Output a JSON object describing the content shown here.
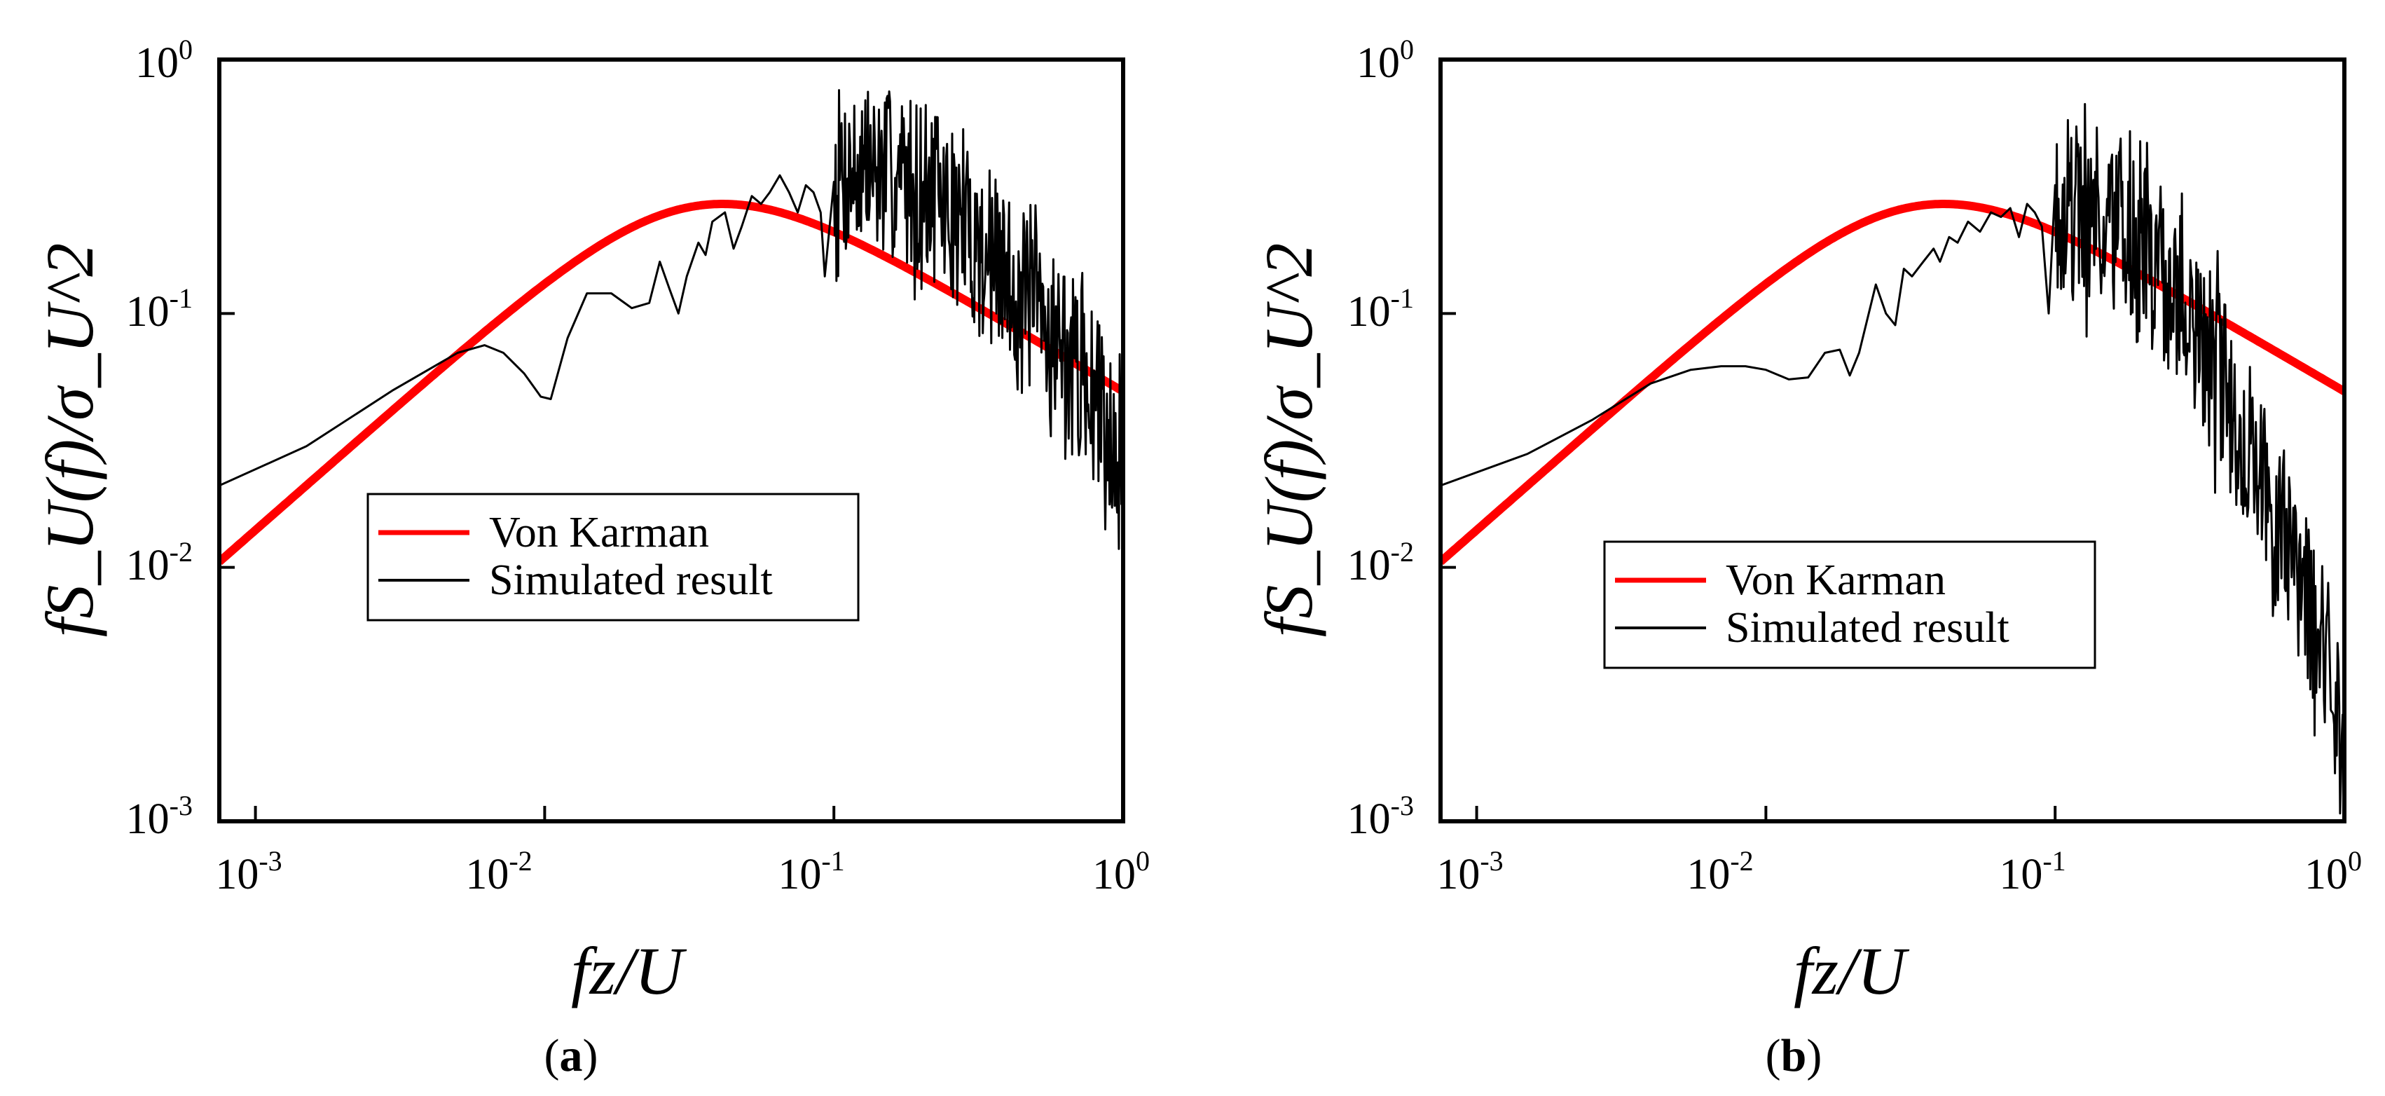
{
  "colors": {
    "von_karman": "#ff0000",
    "simulated": "#000000",
    "axes": "#000000",
    "background": "#ffffff"
  },
  "chart_data": [
    {
      "type": "line",
      "caption": "a",
      "xlabel": "fz/U",
      "ylabel": "fS_U(f)/σ_U^2",
      "xscale": "log",
      "yscale": "log",
      "xlim": [
        0.00075,
        1.0
      ],
      "ylim": [
        0.001,
        1.0
      ],
      "x_ticks": [
        {
          "base": "10",
          "exp": "-3"
        },
        {
          "base": "10",
          "exp": "-2"
        },
        {
          "base": "10",
          "exp": "-1"
        },
        {
          "base": "10",
          "exp": "0"
        }
      ],
      "y_ticks": [
        {
          "base": "10",
          "exp": "-3"
        },
        {
          "base": "10",
          "exp": "-2"
        },
        {
          "base": "10",
          "exp": "-1"
        },
        {
          "base": "10",
          "exp": "0"
        }
      ],
      "legend": {
        "placement": "center-left",
        "entries": [
          {
            "name": "Von Karman",
            "color": "#ff0000"
          },
          {
            "name": "Simulated result",
            "color": "#000000"
          }
        ]
      },
      "series": [
        {
          "name": "Von Karman",
          "model": "von-karman",
          "peak_x": 0.045,
          "peak_y": 0.27
        },
        {
          "name": "Simulated result",
          "smooth": {
            "x": [
              0.00075,
              0.0015,
              0.003,
              0.005,
              0.0062,
              0.0072,
              0.0085,
              0.0097,
              0.0105,
              0.012,
              0.014,
              0.017,
              0.02,
              0.023,
              0.025,
              0.027,
              0.029,
              0.031,
              0.034,
              0.036,
              0.038,
              0.042,
              0.045,
              0.048,
              0.052,
              0.056,
              0.06,
              0.065,
              0.07,
              0.075,
              0.08,
              0.085,
              0.09,
              0.093,
              0.1
            ],
            "y": [
              0.021,
              0.03,
              0.05,
              0.07,
              0.075,
              0.07,
              0.058,
              0.047,
              0.046,
              0.08,
              0.12,
              0.12,
              0.105,
              0.11,
              0.16,
              0.125,
              0.1,
              0.14,
              0.19,
              0.17,
              0.23,
              0.25,
              0.18,
              0.22,
              0.29,
              0.27,
              0.3,
              0.35,
              0.3,
              0.25,
              0.32,
              0.3,
              0.25,
              0.14,
              0.33
            ]
          },
          "noisy": {
            "x_start": 0.1,
            "x_end": 1.0,
            "anchors_x": [
              0.1,
              0.13,
              0.2,
              0.3,
              0.5,
              0.7,
              1.0
            ],
            "anchors_y": [
              0.36,
              0.37,
              0.33,
              0.2,
              0.1,
              0.06,
              0.03
            ],
            "jitter": 0.34,
            "seed": 7,
            "count": 340
          }
        }
      ]
    },
    {
      "type": "line",
      "caption": "b",
      "xlabel": "fz/U",
      "ylabel": "fS_U(f)/σ_U^2",
      "xscale": "log",
      "yscale": "log",
      "xlim": [
        0.00075,
        1.0
      ],
      "ylim": [
        0.001,
        1.0
      ],
      "x_ticks": [
        {
          "base": "10",
          "exp": "-3"
        },
        {
          "base": "10",
          "exp": "-2"
        },
        {
          "base": "10",
          "exp": "-1"
        },
        {
          "base": "10",
          "exp": "0"
        }
      ],
      "y_ticks": [
        {
          "base": "10",
          "exp": "-3"
        },
        {
          "base": "10",
          "exp": "-2"
        },
        {
          "base": "10",
          "exp": "-1"
        },
        {
          "base": "10",
          "exp": "0"
        }
      ],
      "legend": {
        "placement": "lower-center",
        "entries": [
          {
            "name": "Von Karman",
            "color": "#ff0000"
          },
          {
            "name": "Simulated result",
            "color": "#000000"
          }
        ]
      },
      "series": [
        {
          "name": "Von Karman",
          "model": "von-karman",
          "peak_x": 0.045,
          "peak_y": 0.27
        },
        {
          "name": "Simulated result",
          "smooth": {
            "x": [
              0.00075,
              0.0015,
              0.0025,
              0.004,
              0.0055,
              0.007,
              0.0085,
              0.01,
              0.012,
              0.014,
              0.016,
              0.018,
              0.0195,
              0.021,
              0.024,
              0.026,
              0.028,
              0.03,
              0.032,
              0.035,
              0.038,
              0.04,
              0.043,
              0.046,
              0.05,
              0.055,
              0.06,
              0.065,
              0.07,
              0.075,
              0.08,
              0.085,
              0.09,
              0.095,
              0.1
            ],
            "y": [
              0.021,
              0.028,
              0.038,
              0.053,
              0.06,
              0.062,
              0.062,
              0.06,
              0.055,
              0.056,
              0.07,
              0.072,
              0.057,
              0.07,
              0.13,
              0.1,
              0.09,
              0.15,
              0.14,
              0.16,
              0.18,
              0.16,
              0.2,
              0.19,
              0.23,
              0.21,
              0.25,
              0.24,
              0.26,
              0.2,
              0.27,
              0.25,
              0.22,
              0.1,
              0.32
            ]
          },
          "noisy": {
            "x_start": 0.1,
            "x_end": 1.0,
            "anchors_x": [
              0.1,
              0.13,
              0.2,
              0.3,
              0.4,
              0.5,
              0.6,
              0.7,
              0.8,
              0.9,
              1.0
            ],
            "anchors_y": [
              0.27,
              0.25,
              0.18,
              0.09,
              0.045,
              0.025,
              0.016,
              0.01,
              0.006,
              0.0035,
              0.0015
            ],
            "jitter": 0.36,
            "seed": 19,
            "count": 340
          }
        }
      ]
    }
  ]
}
